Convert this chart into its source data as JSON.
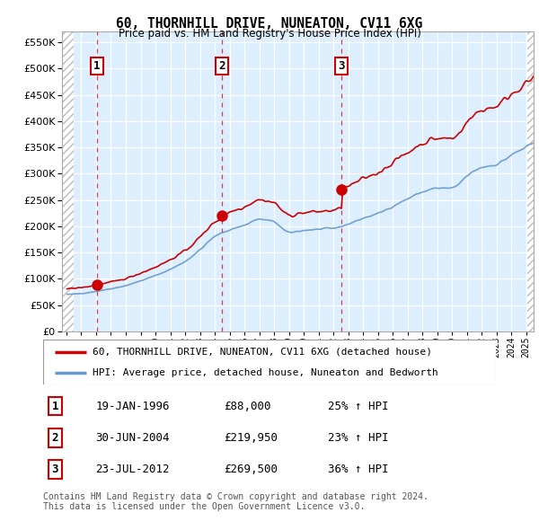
{
  "title": "60, THORNHILL DRIVE, NUNEATON, CV11 6XG",
  "subtitle": "Price paid vs. HM Land Registry's House Price Index (HPI)",
  "ylim": [
    0,
    570000
  ],
  "yticks": [
    0,
    50000,
    100000,
    150000,
    200000,
    250000,
    300000,
    350000,
    400000,
    450000,
    500000,
    550000
  ],
  "xlim_start": 1993.7,
  "xlim_end": 2025.5,
  "hatch_left_end": 1994.5,
  "hatch_right_start": 2025.1,
  "sale_dates": [
    1996.05,
    2004.5,
    2012.56
  ],
  "sale_prices": [
    88000,
    219950,
    269500
  ],
  "sale_labels": [
    "1",
    "2",
    "3"
  ],
  "legend_label_red": "60, THORNHILL DRIVE, NUNEATON, CV11 6XG (detached house)",
  "legend_label_blue": "HPI: Average price, detached house, Nuneaton and Bedworth",
  "table_rows": [
    [
      "1",
      "19-JAN-1996",
      "£88,000",
      "25% ↑ HPI"
    ],
    [
      "2",
      "30-JUN-2004",
      "£219,950",
      "23% ↑ HPI"
    ],
    [
      "3",
      "23-JUL-2012",
      "£269,500",
      "36% ↑ HPI"
    ]
  ],
  "footnote": "Contains HM Land Registry data © Crown copyright and database right 2024.\nThis data is licensed under the Open Government Licence v3.0.",
  "red_line_color": "#cc0000",
  "blue_line_color": "#6699cc",
  "plot_bg": "#ddeeff"
}
